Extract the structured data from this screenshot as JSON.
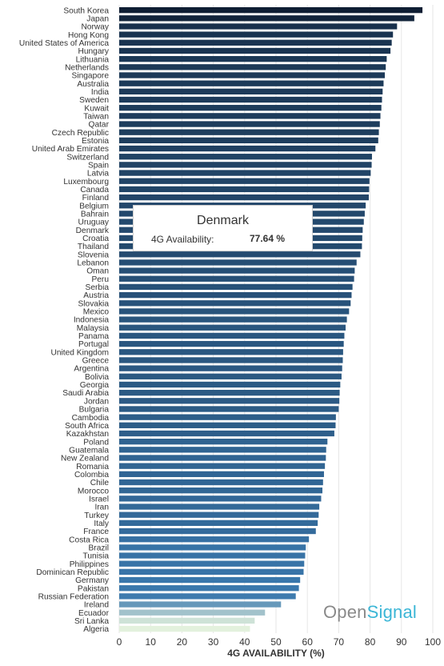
{
  "chart_data": {
    "type": "bar",
    "orientation": "horizontal",
    "xlabel": "4G AVAILABILITY (%)",
    "xlim": [
      0,
      100
    ],
    "xticks": [
      0,
      10,
      20,
      30,
      40,
      50,
      60,
      70,
      80,
      90,
      100
    ],
    "grid": true,
    "categories": [
      "South Korea",
      "Japan",
      "Norway",
      "Hong Kong",
      "United States of America",
      "Hungary",
      "Lithuania",
      "Netherlands",
      "Singapore",
      "Australia",
      "India",
      "Sweden",
      "Kuwait",
      "Taiwan",
      "Qatar",
      "Czech Republic",
      "Estonia",
      "United Arab Emirates",
      "Switzerland",
      "Spain",
      "Latvia",
      "Luxembourg",
      "Canada",
      "Finland",
      "Belgium",
      "Bahrain",
      "Uruguay",
      "Denmark",
      "Croatia",
      "Thailand",
      "Slovenia",
      "Lebanon",
      "Oman",
      "Peru",
      "Serbia",
      "Austria",
      "Slovakia",
      "Mexico",
      "Indonesia",
      "Malaysia",
      "Panama",
      "Portugal",
      "United Kingdom",
      "Greece",
      "Argentina",
      "Bolivia",
      "Georgia",
      "Saudi Arabia",
      "Jordan",
      "Bulgaria",
      "Cambodia",
      "South Africa",
      "Kazakhstan",
      "Poland",
      "Guatemala",
      "New Zealand",
      "Romania",
      "Colombia",
      "Chile",
      "Morocco",
      "Israel",
      "Iran",
      "Turkey",
      "Italy",
      "France",
      "Costa Rica",
      "Brazil",
      "Tunisia",
      "Philippines",
      "Dominican Republic",
      "Germany",
      "Pakistan",
      "Russian Federation",
      "Ireland",
      "Ecuador",
      "Sri Lanka",
      "Algeria"
    ],
    "values": [
      96.7,
      94.1,
      88.6,
      87.3,
      86.9,
      86.5,
      85.3,
      85.0,
      84.7,
      84.3,
      84.0,
      83.8,
      83.6,
      83.3,
      83.1,
      82.8,
      82.6,
      81.7,
      80.6,
      80.5,
      80.2,
      79.8,
      79.7,
      79.6,
      78.6,
      78.3,
      78.0,
      77.64,
      77.5,
      77.4,
      76.9,
      75.7,
      75.1,
      74.9,
      74.4,
      74.1,
      73.8,
      73.3,
      72.6,
      72.2,
      71.8,
      71.6,
      71.4,
      71.3,
      71.1,
      70.9,
      70.5,
      70.3,
      70.2,
      70.0,
      69.1,
      69.0,
      68.6,
      66.4,
      66.0,
      65.9,
      65.6,
      65.3,
      65.0,
      64.8,
      64.4,
      63.8,
      63.6,
      63.3,
      62.7,
      60.5,
      59.5,
      59.3,
      59.0,
      58.8,
      57.7,
      57.3,
      56.3,
      51.6,
      46.5,
      43.2,
      41.7
    ],
    "color_dark": "#0f1e33",
    "color_mid": "#3a78ad",
    "color_light": "#e3f1dd"
  },
  "tooltip": {
    "title": "Denmark",
    "label": "4G Availability:",
    "value": "77.64 %"
  },
  "logo": {
    "part1": "Open",
    "part2": "Signal"
  }
}
